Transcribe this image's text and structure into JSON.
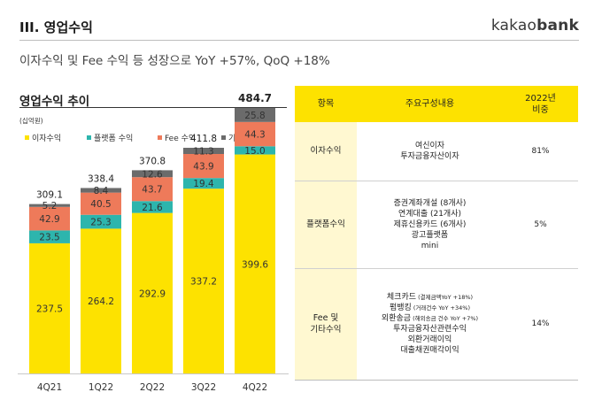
{
  "header": {
    "section_title": "III. 영업수익",
    "brand_light": "kakao",
    "brand_bold": "bank",
    "headline": "이자수익 및 Fee 수익 등 성장으로 YoY +57%, QoQ +18%"
  },
  "colors": {
    "interest": "#fde200",
    "platform": "#2db5ad",
    "fee": "#ee7a5a",
    "other": "#6b6b6b",
    "table_header": "#fde200",
    "table_category": "#fff8d1"
  },
  "chart_data": {
    "type": "bar",
    "stacked": true,
    "title": "영업수익 추이",
    "unit_label": "(십억원)",
    "categories": [
      "4Q21",
      "1Q22",
      "2Q22",
      "3Q22",
      "4Q22"
    ],
    "series": [
      {
        "name": "이자수익",
        "values": [
          237.5,
          264.2,
          292.9,
          337.2,
          399.6
        ]
      },
      {
        "name": "플랫폼 수익",
        "values": [
          23.5,
          25.3,
          21.6,
          19.4,
          15.0
        ]
      },
      {
        "name": "Fee 수익",
        "values": [
          42.9,
          40.5,
          43.7,
          43.9,
          44.3
        ]
      },
      {
        "name": "기타 수익",
        "values": [
          5.2,
          8.4,
          12.6,
          11.3,
          25.8
        ]
      }
    ],
    "totals": [
      309.1,
      338.4,
      370.8,
      411.8,
      484.7
    ],
    "last_total_bold": true,
    "ylim": [
      0,
      520
    ],
    "grid": false,
    "legend_position": "top"
  },
  "table": {
    "headers": [
      "항목",
      "주요구성내용",
      "2022년\n비중"
    ],
    "rows": [
      {
        "category": "이자수익",
        "lines": [
          {
            "text": "여신이자"
          },
          {
            "text": "투자금융자산이자"
          }
        ],
        "share": "81%"
      },
      {
        "category": "플랫폼수익",
        "lines": [
          {
            "text": "증권계좌개설 (8개사)"
          },
          {
            "text": "연계대출 (21개사)"
          },
          {
            "text": "제휴신용카드 (6개사)"
          },
          {
            "text": "광고플랫폼"
          },
          {
            "text": "mini"
          }
        ],
        "share": "5%"
      },
      {
        "category": "Fee 및\n기타수익",
        "lines": [
          {
            "text": "체크카드",
            "note": "(결제금액YoY +18%)"
          },
          {
            "text": "펌뱅킹",
            "note": "(거래건수 YoY +34%)"
          },
          {
            "text": "외환송금",
            "note": "(해외송금 건수 YoY +7%)"
          },
          {
            "text": "투자금융자산관련수익"
          },
          {
            "text": "외환거래이익"
          },
          {
            "text": "대출채권매각이익"
          }
        ],
        "share": "14%"
      }
    ]
  }
}
